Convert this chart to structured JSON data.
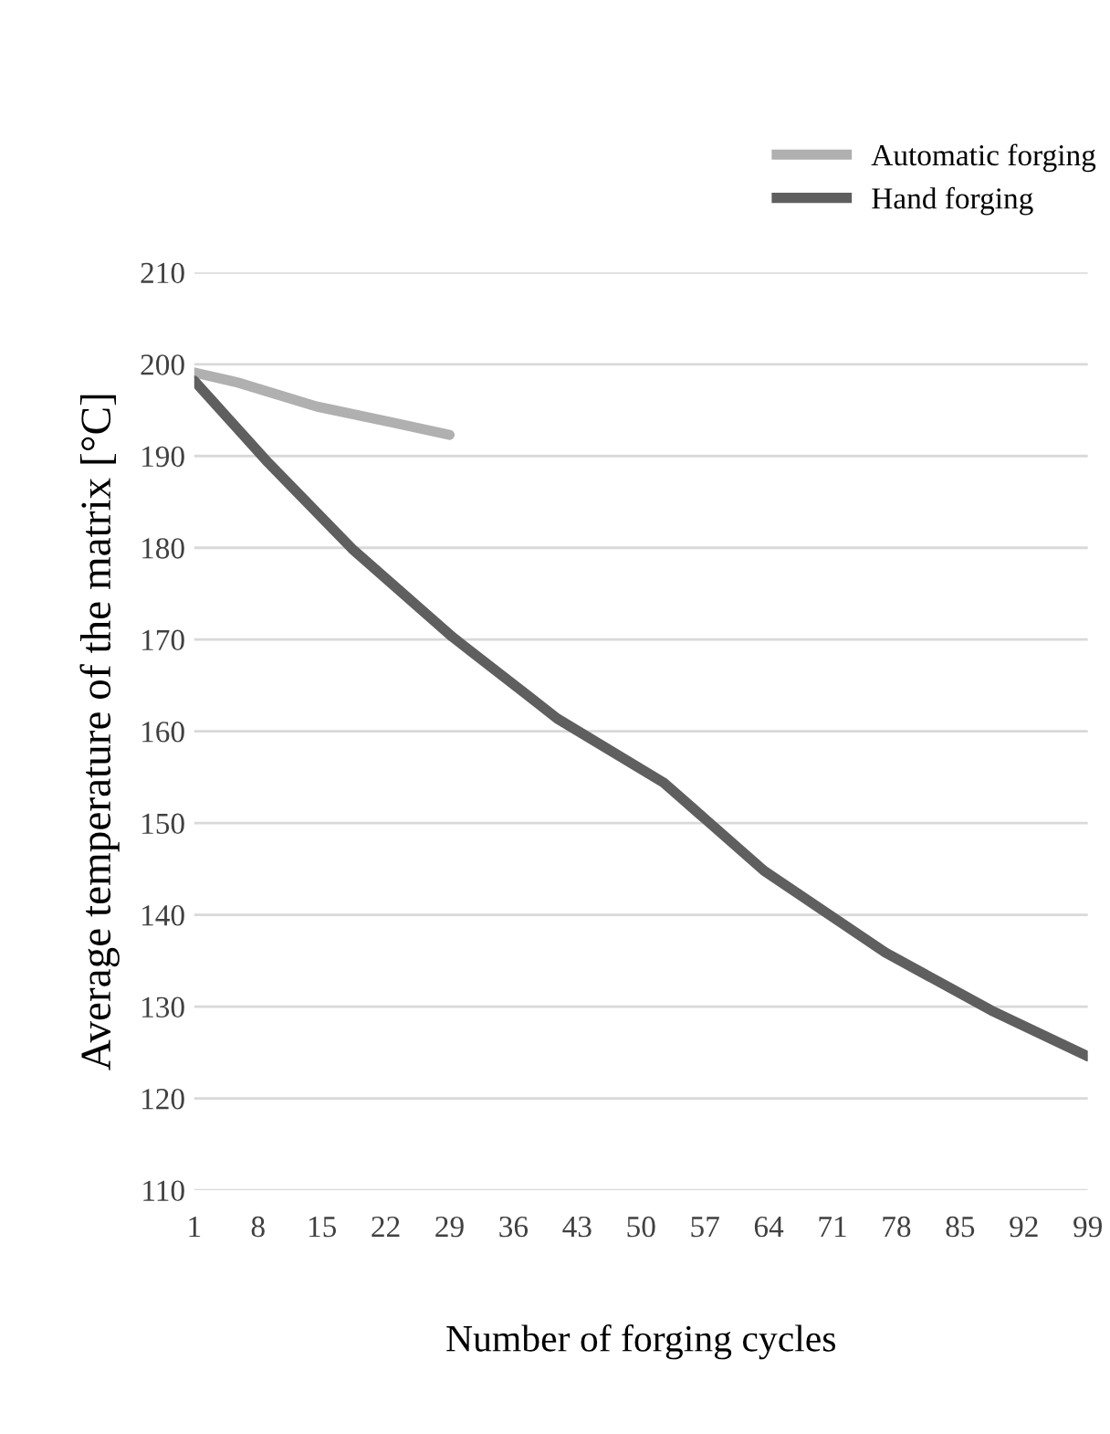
{
  "chart_data": {
    "type": "line",
    "xlabel": "Number of forging cycles",
    "ylabel": "Average temperature of the matrix [°C]",
    "xlim": [
      1,
      99
    ],
    "xticks": [
      1,
      8,
      15,
      22,
      29,
      36,
      43,
      50,
      57,
      64,
      71,
      78,
      85,
      92,
      99
    ],
    "ylim": [
      110,
      210
    ],
    "yticks": [
      110,
      120,
      130,
      140,
      150,
      160,
      170,
      180,
      190,
      200,
      210
    ],
    "grid": "y",
    "legend": "top right",
    "marker": "none",
    "line_style": "solid",
    "series": [
      {
        "name": "Automatic forging",
        "color": "#b0b0b0",
        "x": [
          1,
          5.8,
          14.4,
          23,
          29
        ],
        "values": [
          199.1,
          198.0,
          195.4,
          193.6,
          192.3
        ]
      },
      {
        "name": "Hand forging",
        "color": "#5f5f5f",
        "x": [
          1,
          3,
          8.9,
          18.3,
          29.3,
          38.5,
          40.8,
          52.5,
          57.2,
          63.5,
          76.8,
          88.4,
          99
        ],
        "values": [
          198.2,
          196.0,
          189.5,
          179.9,
          170.3,
          163.2,
          161.4,
          154.4,
          150.3,
          144.8,
          135.9,
          129.6,
          124.6
        ]
      }
    ]
  }
}
